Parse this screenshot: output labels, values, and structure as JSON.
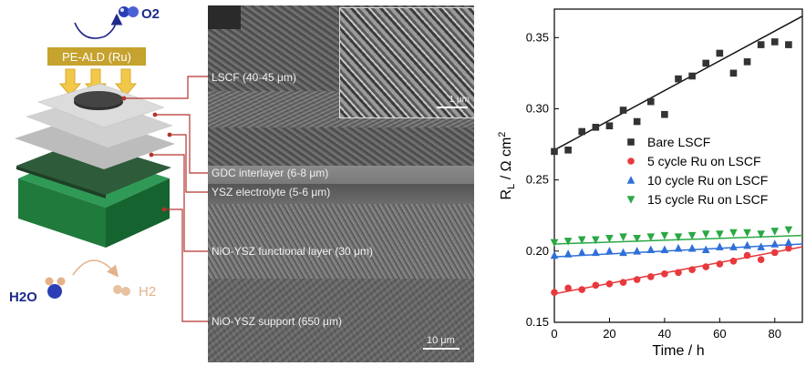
{
  "schematic": {
    "o2_label": "O2",
    "peald_label": "PE-ALD (Ru)",
    "h2o_label": "H2O",
    "h2_label": "H2"
  },
  "sem": {
    "labels": [
      "LSCF (40-45 μm)",
      "GDC interlayer (6-8 μm)",
      "YSZ electrolyte (5-6 μm)",
      "NiO-YSZ functional layer (30 μm)",
      "NiO-YSZ support (650 μm)"
    ],
    "inset_scale": "1 μm",
    "main_scale": "10 μm"
  },
  "colors": {
    "bare": "#333333",
    "ru5": "#e8393c",
    "ru10": "#2f6fd8",
    "ru15": "#2aa844",
    "connector": "#b5332f"
  },
  "chart_data": {
    "type": "scatter",
    "xlabel": "Time / h",
    "ylabel": "R",
    "ylabel_sub": "L",
    "ylabel_unit": " / Ω cm",
    "ylabel_sup": "2",
    "xlim": [
      0,
      90
    ],
    "ylim": [
      0.15,
      0.37
    ],
    "xticks": [
      0,
      20,
      40,
      60,
      80
    ],
    "yticks": [
      0.15,
      0.2,
      0.25,
      0.3,
      0.35
    ],
    "legend_position": "right",
    "series": [
      {
        "name": "Bare LSCF",
        "marker": "square",
        "color": "#333333",
        "x": [
          0,
          5,
          10,
          15,
          20,
          25,
          30,
          35,
          40,
          45,
          50,
          55,
          60,
          65,
          70,
          75,
          80,
          85
        ],
        "y": [
          0.27,
          0.271,
          0.284,
          0.287,
          0.288,
          0.299,
          0.291,
          0.305,
          0.296,
          0.321,
          0.323,
          0.332,
          0.339,
          0.325,
          0.333,
          0.345,
          0.347,
          0.345
        ],
        "fit": [
          0.271,
          0.365
        ]
      },
      {
        "name": "5 cycle Ru on LSCF",
        "marker": "circle",
        "color": "#e8393c",
        "x": [
          0,
          5,
          10,
          15,
          20,
          25,
          30,
          35,
          40,
          45,
          50,
          55,
          60,
          65,
          70,
          75,
          80,
          85
        ],
        "y": [
          0.171,
          0.174,
          0.173,
          0.176,
          0.177,
          0.178,
          0.18,
          0.182,
          0.184,
          0.185,
          0.187,
          0.189,
          0.191,
          0.193,
          0.197,
          0.194,
          0.199,
          0.202
        ],
        "fit": [
          0.17,
          0.203
        ]
      },
      {
        "name": "10 cycle Ru on LSCF",
        "marker": "triangle-up",
        "color": "#2f6fd8",
        "x": [
          0,
          5,
          10,
          15,
          20,
          25,
          30,
          35,
          40,
          45,
          50,
          55,
          60,
          65,
          70,
          75,
          80,
          85
        ],
        "y": [
          0.197,
          0.198,
          0.199,
          0.199,
          0.2,
          0.199,
          0.2,
          0.201,
          0.201,
          0.202,
          0.202,
          0.201,
          0.203,
          0.203,
          0.204,
          0.203,
          0.205,
          0.206
        ],
        "fit": [
          0.196,
          0.205
        ]
      },
      {
        "name": "15 cycle Ru on LSCF",
        "marker": "triangle-down",
        "color": "#2aa844",
        "x": [
          0,
          5,
          10,
          15,
          20,
          25,
          30,
          35,
          40,
          45,
          50,
          55,
          60,
          65,
          70,
          75,
          80,
          85
        ],
        "y": [
          0.206,
          0.207,
          0.208,
          0.208,
          0.209,
          0.21,
          0.209,
          0.21,
          0.211,
          0.21,
          0.211,
          0.212,
          0.212,
          0.213,
          0.213,
          0.212,
          0.214,
          0.215
        ],
        "fit": [
          0.205,
          0.211
        ]
      }
    ]
  }
}
